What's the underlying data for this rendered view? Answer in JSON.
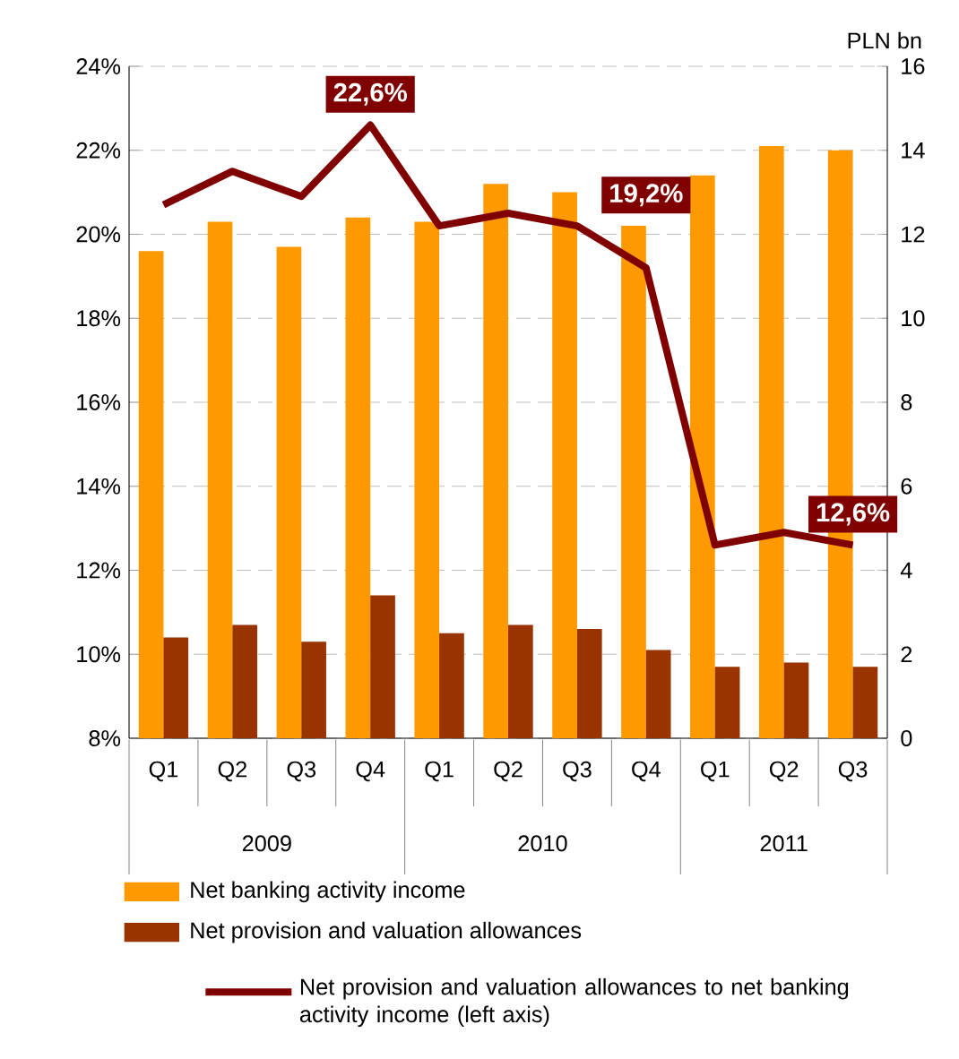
{
  "chart_data": {
    "type": "bar",
    "categories": [
      "Q1",
      "Q2",
      "Q3",
      "Q4",
      "Q1",
      "Q2",
      "Q3",
      "Q4",
      "Q1",
      "Q2",
      "Q3"
    ],
    "series": [
      {
        "name": "Net banking activity income",
        "color": "#ff9900",
        "axis": "y2",
        "values": [
          11.6,
          12.3,
          11.7,
          12.4,
          12.3,
          13.2,
          13.0,
          12.2,
          13.4,
          14.1,
          14.0
        ]
      },
      {
        "name": "Net provision and valuation allowances",
        "color": "#993300",
        "axis": "y2",
        "values": [
          2.4,
          2.7,
          2.3,
          3.4,
          2.5,
          2.7,
          2.6,
          2.1,
          1.7,
          1.8,
          1.7
        ]
      },
      {
        "name": "Net provision and valuation allowances to net banking activity income (left axis)",
        "type": "line",
        "color": "#800000",
        "values": [
          20.7,
          21.5,
          20.9,
          22.6,
          20.2,
          20.5,
          20.2,
          19.2,
          12.6,
          12.9,
          12.6
        ],
        "value_labels": [
          null,
          null,
          null,
          "22,6%",
          null,
          null,
          null,
          "19,2%",
          null,
          null,
          "12,6%"
        ]
      }
    ],
    "ylim": [
      8,
      24
    ],
    "yticks": [
      {
        "value": 8,
        "label": "8%"
      },
      {
        "value": 10,
        "label": "10%"
      },
      {
        "value": 12,
        "label": "12%"
      },
      {
        "value": 14,
        "label": "14%"
      },
      {
        "value": 16,
        "label": "16%"
      },
      {
        "value": 18,
        "label": "18%"
      },
      {
        "value": 20,
        "label": "20%"
      },
      {
        "value": 22,
        "label": "22%"
      },
      {
        "value": 24,
        "label": "24%"
      }
    ],
    "y2lim": [
      0,
      16
    ],
    "y2ticks": [
      0,
      2,
      4,
      6,
      8,
      10,
      12,
      14,
      16
    ],
    "y2label": "PLN bn",
    "annotations": [
      "2009",
      "2010",
      "2011"
    ],
    "grid": "y",
    "legend": "bottom",
    "marker": "none",
    "line_style": "solid"
  }
}
